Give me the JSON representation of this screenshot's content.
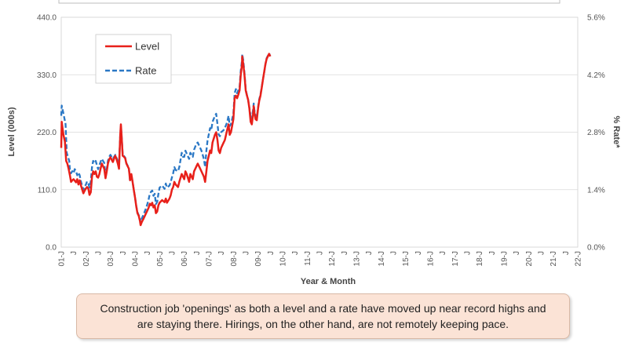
{
  "chart_data": {
    "type": "line",
    "title": "",
    "xlabel": "Year & Month",
    "ylabel": "Level (000s)",
    "y2label": "% Rate*",
    "ylim": [
      0,
      440
    ],
    "y2lim": [
      0,
      5.6
    ],
    "y_ticks": [
      "0.0",
      "110.0",
      "220.0",
      "330.0",
      "440.0"
    ],
    "y2_ticks": [
      "0.0%",
      "1.4%",
      "2.8%",
      "4.2%",
      "5.6%"
    ],
    "x_ticks": [
      "01-J",
      "J",
      "02-J",
      "J",
      "03-J",
      "J",
      "04-J",
      "J",
      "05-J",
      "J",
      "06-J",
      "J",
      "07-J",
      "J",
      "08-J",
      "J",
      "09-J",
      "J",
      "10-J",
      "J",
      "11-J",
      "J",
      "12-J",
      "J",
      "13-J",
      "J",
      "14-J",
      "J",
      "15-J",
      "J",
      "16-J",
      "J",
      "17-J",
      "J",
      "18-J",
      "J",
      "19-J",
      "J",
      "20-J",
      "J",
      "21-J",
      "J",
      "22-J"
    ],
    "grid": "horizontal",
    "legend": "top-left",
    "series": [
      {
        "name": "Level",
        "axis": "left",
        "color": "#e8201a",
        "style": "solid",
        "points": [
          [
            0,
            190
          ],
          [
            0.04,
            240
          ],
          [
            0.12,
            225
          ],
          [
            0.18,
            215
          ],
          [
            0.3,
            202
          ],
          [
            0.4,
            165
          ],
          [
            0.5,
            160
          ],
          [
            0.6,
            150
          ],
          [
            0.7,
            138
          ],
          [
            0.8,
            125
          ],
          [
            0.9,
            128
          ],
          [
            1.0,
            130
          ],
          [
            1.2,
            124
          ],
          [
            1.3,
            130
          ],
          [
            1.4,
            120
          ],
          [
            1.5,
            128
          ],
          [
            1.6,
            118
          ],
          [
            1.8,
            103
          ],
          [
            1.9,
            108
          ],
          [
            2.0,
            112
          ],
          [
            2.1,
            115
          ],
          [
            2.2,
            112
          ],
          [
            2.3,
            100
          ],
          [
            2.4,
            105
          ],
          [
            2.5,
            135
          ],
          [
            2.6,
            145
          ],
          [
            2.7,
            140
          ],
          [
            2.8,
            145
          ],
          [
            2.9,
            135
          ],
          [
            3.0,
            133
          ],
          [
            3.1,
            140
          ],
          [
            3.2,
            150
          ],
          [
            3.3,
            160
          ],
          [
            3.5,
            150
          ],
          [
            3.6,
            132
          ],
          [
            3.7,
            145
          ],
          [
            3.8,
            160
          ],
          [
            3.9,
            168
          ],
          [
            4.0,
            172
          ],
          [
            4.2,
            163
          ],
          [
            4.3,
            170
          ],
          [
            4.4,
            175
          ],
          [
            4.5,
            168
          ],
          [
            4.6,
            160
          ],
          [
            4.7,
            150
          ],
          [
            4.8,
            215
          ],
          [
            4.85,
            235
          ],
          [
            4.9,
            215
          ],
          [
            5.0,
            175
          ],
          [
            5.1,
            173
          ],
          [
            5.2,
            170
          ],
          [
            5.3,
            160
          ],
          [
            5.5,
            150
          ],
          [
            5.6,
            128
          ],
          [
            5.7,
            140
          ],
          [
            5.8,
            125
          ],
          [
            5.9,
            110
          ],
          [
            6.0,
            95
          ],
          [
            6.1,
            78
          ],
          [
            6.2,
            65
          ],
          [
            6.3,
            60
          ],
          [
            6.4,
            50
          ],
          [
            6.45,
            42
          ],
          [
            6.55,
            48
          ],
          [
            6.7,
            55
          ],
          [
            6.9,
            65
          ],
          [
            7.1,
            75
          ],
          [
            7.2,
            83
          ],
          [
            7.3,
            80
          ],
          [
            7.4,
            85
          ],
          [
            7.5,
            76
          ],
          [
            7.6,
            80
          ],
          [
            7.7,
            65
          ],
          [
            7.8,
            68
          ],
          [
            7.9,
            80
          ],
          [
            8.0,
            85
          ],
          [
            8.2,
            90
          ],
          [
            8.4,
            86
          ],
          [
            8.5,
            93
          ],
          [
            8.6,
            85
          ],
          [
            8.8,
            93
          ],
          [
            8.9,
            99
          ],
          [
            9.0,
            110
          ],
          [
            9.1,
            115
          ],
          [
            9.2,
            125
          ],
          [
            9.3,
            120
          ],
          [
            9.5,
            115
          ],
          [
            9.6,
            125
          ],
          [
            9.8,
            140
          ],
          [
            9.9,
            135
          ],
          [
            10.0,
            130
          ],
          [
            10.1,
            145
          ],
          [
            10.2,
            140
          ],
          [
            10.4,
            125
          ],
          [
            10.5,
            140
          ],
          [
            10.7,
            130
          ],
          [
            10.8,
            145
          ],
          [
            10.9,
            150
          ],
          [
            11.0,
            155
          ],
          [
            11.1,
            160
          ],
          [
            11.2,
            155
          ],
          [
            11.4,
            145
          ],
          [
            11.6,
            135
          ],
          [
            11.7,
            125
          ],
          [
            11.8,
            145
          ],
          [
            11.9,
            165
          ],
          [
            12.0,
            175
          ],
          [
            12.1,
            185
          ],
          [
            12.2,
            180
          ],
          [
            12.3,
            200
          ],
          [
            12.5,
            215
          ],
          [
            12.6,
            220
          ],
          [
            12.7,
            205
          ],
          [
            12.8,
            185
          ],
          [
            12.9,
            180
          ],
          [
            13.0,
            190
          ],
          [
            13.2,
            200
          ],
          [
            13.3,
            205
          ],
          [
            13.5,
            225
          ],
          [
            13.6,
            235
          ],
          [
            13.7,
            215
          ],
          [
            13.8,
            220
          ],
          [
            14.0,
            245
          ],
          [
            14.1,
            285
          ],
          [
            14.2,
            290
          ],
          [
            14.3,
            285
          ],
          [
            14.4,
            292
          ],
          [
            14.5,
            300
          ],
          [
            14.6,
            330
          ],
          [
            14.7,
            350
          ],
          [
            14.72,
            365
          ],
          [
            14.8,
            350
          ],
          [
            14.9,
            330
          ],
          [
            15.0,
            300
          ],
          [
            15.1,
            290
          ],
          [
            15.2,
            282
          ],
          [
            15.3,
            265
          ],
          [
            15.4,
            240
          ],
          [
            15.5,
            235
          ],
          [
            15.6,
            255
          ],
          [
            15.65,
            270
          ],
          [
            15.7,
            258
          ],
          [
            15.8,
            245
          ],
          [
            15.9,
            243
          ],
          [
            16.0,
            265
          ],
          [
            16.1,
            280
          ],
          [
            16.2,
            290
          ],
          [
            16.3,
            305
          ],
          [
            16.4,
            320
          ],
          [
            16.5,
            335
          ],
          [
            16.6,
            350
          ],
          [
            16.7,
            360
          ],
          [
            16.8,
            365
          ],
          [
            16.9,
            370
          ],
          [
            17.0,
            365
          ]
        ]
      },
      {
        "name": "Rate",
        "axis": "right",
        "color": "#2b78c5",
        "style": "dashed",
        "points": [
          [
            0,
            3.2
          ],
          [
            0.04,
            3.45
          ],
          [
            0.15,
            3.3
          ],
          [
            0.25,
            3.15
          ],
          [
            0.35,
            3.0
          ],
          [
            0.45,
            2.3
          ],
          [
            0.55,
            2.2
          ],
          [
            0.65,
            2.1
          ],
          [
            0.7,
            1.9
          ],
          [
            0.8,
            1.8
          ],
          [
            0.9,
            1.85
          ],
          [
            1.0,
            1.8
          ],
          [
            1.1,
            1.9
          ],
          [
            1.2,
            1.85
          ],
          [
            1.3,
            1.75
          ],
          [
            1.4,
            1.82
          ],
          [
            1.5,
            1.75
          ],
          [
            1.6,
            1.6
          ],
          [
            1.7,
            1.5
          ],
          [
            1.8,
            1.4
          ],
          [
            1.9,
            1.48
          ],
          [
            2.0,
            1.52
          ],
          [
            2.1,
            1.6
          ],
          [
            2.2,
            1.55
          ],
          [
            2.3,
            1.45
          ],
          [
            2.4,
            1.6
          ],
          [
            2.5,
            1.95
          ],
          [
            2.6,
            2.1
          ],
          [
            2.7,
            2.05
          ],
          [
            2.8,
            2.1
          ],
          [
            2.9,
            2.0
          ],
          [
            3.0,
            1.9
          ],
          [
            3.1,
            2.0
          ],
          [
            3.2,
            2.08
          ],
          [
            3.3,
            2.15
          ],
          [
            3.5,
            2.05
          ],
          [
            3.6,
            1.75
          ],
          [
            3.7,
            1.9
          ],
          [
            3.8,
            2.1
          ],
          [
            3.9,
            2.2
          ],
          [
            4.0,
            2.25
          ],
          [
            4.2,
            2.15
          ],
          [
            4.3,
            2.2
          ],
          [
            4.4,
            2.25
          ],
          [
            4.5,
            2.17
          ],
          [
            4.6,
            2.1
          ],
          [
            4.7,
            2.0
          ],
          [
            4.8,
            2.75
          ],
          [
            4.85,
            2.95
          ],
          [
            4.9,
            2.75
          ],
          [
            5.0,
            2.25
          ],
          [
            5.1,
            2.22
          ],
          [
            5.2,
            2.18
          ],
          [
            5.3,
            2.05
          ],
          [
            5.5,
            1.92
          ],
          [
            5.6,
            1.6
          ],
          [
            5.7,
            1.75
          ],
          [
            5.8,
            1.6
          ],
          [
            5.9,
            1.4
          ],
          [
            6.0,
            1.22
          ],
          [
            6.1,
            1.0
          ],
          [
            6.2,
            0.85
          ],
          [
            6.3,
            0.78
          ],
          [
            6.4,
            0.7
          ],
          [
            6.45,
            0.6
          ],
          [
            6.55,
            0.7
          ],
          [
            6.7,
            0.8
          ],
          [
            6.9,
            0.95
          ],
          [
            7.0,
            1.05
          ],
          [
            7.1,
            1.15
          ],
          [
            7.2,
            1.3
          ],
          [
            7.3,
            1.35
          ],
          [
            7.4,
            1.38
          ],
          [
            7.5,
            1.25
          ],
          [
            7.6,
            1.3
          ],
          [
            7.7,
            1.05
          ],
          [
            7.8,
            1.1
          ],
          [
            7.9,
            1.3
          ],
          [
            8.0,
            1.45
          ],
          [
            8.2,
            1.5
          ],
          [
            8.4,
            1.42
          ],
          [
            8.5,
            1.55
          ],
          [
            8.6,
            1.45
          ],
          [
            8.8,
            1.5
          ],
          [
            8.9,
            1.58
          ],
          [
            9.0,
            1.7
          ],
          [
            9.1,
            1.8
          ],
          [
            9.2,
            1.95
          ],
          [
            9.3,
            1.88
          ],
          [
            9.5,
            1.85
          ],
          [
            9.6,
            1.95
          ],
          [
            9.8,
            2.3
          ],
          [
            9.9,
            2.2
          ],
          [
            10.0,
            2.2
          ],
          [
            10.1,
            2.35
          ],
          [
            10.2,
            2.28
          ],
          [
            10.4,
            2.15
          ],
          [
            10.5,
            2.3
          ],
          [
            10.7,
            2.2
          ],
          [
            10.8,
            2.37
          ],
          [
            10.9,
            2.45
          ],
          [
            11.0,
            2.52
          ],
          [
            11.1,
            2.55
          ],
          [
            11.2,
            2.48
          ],
          [
            11.4,
            2.35
          ],
          [
            11.6,
            2.15
          ],
          [
            11.7,
            1.95
          ],
          [
            11.8,
            2.35
          ],
          [
            11.9,
            2.6
          ],
          [
            12.0,
            2.75
          ],
          [
            12.1,
            2.9
          ],
          [
            12.2,
            2.85
          ],
          [
            12.3,
            3.05
          ],
          [
            12.5,
            3.2
          ],
          [
            12.6,
            3.25
          ],
          [
            12.7,
            3.0
          ],
          [
            12.8,
            2.75
          ],
          [
            12.9,
            2.7
          ],
          [
            13.0,
            2.8
          ],
          [
            13.2,
            2.85
          ],
          [
            13.3,
            2.9
          ],
          [
            13.5,
            3.05
          ],
          [
            13.6,
            3.2
          ],
          [
            13.7,
            2.95
          ],
          [
            13.8,
            3.0
          ],
          [
            14.0,
            3.25
          ],
          [
            14.1,
            3.75
          ],
          [
            14.2,
            3.85
          ],
          [
            14.3,
            3.75
          ],
          [
            14.4,
            3.82
          ],
          [
            14.5,
            3.9
          ],
          [
            14.6,
            4.3
          ],
          [
            14.7,
            4.55
          ],
          [
            14.72,
            4.7
          ],
          [
            14.8,
            4.55
          ],
          [
            14.9,
            4.25
          ],
          [
            15.0,
            3.85
          ],
          [
            15.1,
            3.7
          ],
          [
            15.2,
            3.58
          ],
          [
            15.3,
            3.4
          ],
          [
            15.4,
            3.2
          ],
          [
            15.5,
            3.1
          ],
          [
            15.6,
            3.35
          ],
          [
            15.65,
            3.5
          ],
          [
            15.7,
            3.35
          ],
          [
            15.8,
            3.2
          ],
          [
            15.9,
            3.15
          ],
          [
            16.0,
            3.4
          ],
          [
            16.1,
            3.6
          ],
          [
            16.2,
            3.72
          ],
          [
            16.3,
            3.9
          ],
          [
            16.4,
            4.08
          ],
          [
            16.5,
            4.25
          ],
          [
            16.6,
            4.45
          ],
          [
            16.7,
            4.6
          ],
          [
            16.8,
            4.66
          ],
          [
            16.9,
            4.72
          ],
          [
            17.0,
            4.65
          ]
        ]
      }
    ]
  },
  "caption": "Construction job 'openings' as both a level and a rate have moved up near record highs and are staying there. Hirings, on the other hand, are not remotely keeping pace."
}
